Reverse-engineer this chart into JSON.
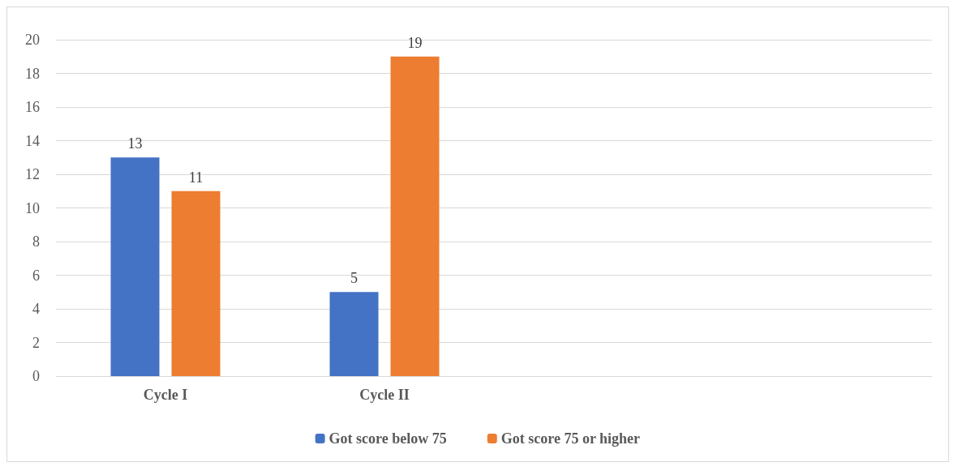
{
  "chart_data": {
    "type": "bar",
    "categories": [
      "Cycle I",
      "Cycle II",
      null,
      null
    ],
    "series": [
      {
        "name": "Got score below 75",
        "color": "#4472c4",
        "values": [
          13,
          5,
          null,
          null
        ]
      },
      {
        "name": "Got score 75 or higher",
        "color": "#ed7d31",
        "values": [
          11,
          19,
          null,
          null
        ]
      }
    ],
    "ylim": [
      0,
      20
    ],
    "yticks": [
      0,
      2,
      4,
      6,
      8,
      10,
      12,
      14,
      16,
      18,
      20
    ],
    "grid": "y",
    "legend": "bottom",
    "data_labels": true
  }
}
